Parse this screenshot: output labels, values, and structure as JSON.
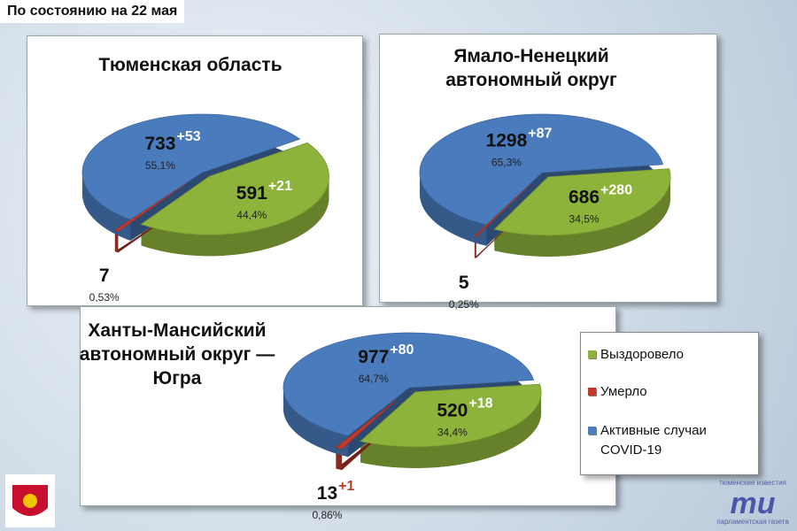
{
  "header": "По состоянию на 22 мая",
  "legend": {
    "labels": [
      "Выздоровело",
      "Умерло",
      "Активные случаи COVID-19"
    ],
    "colors": [
      "#8db33a",
      "#c0392b",
      "#4a7bbd"
    ]
  },
  "chart_data": [
    {
      "type": "pie",
      "title": [
        "Тюменская область"
      ],
      "values": [
        44.4,
        0.53,
        55.1
      ],
      "value_labels": [
        "44,4%",
        "0,53%",
        "55,1%"
      ],
      "counts": [
        591,
        7,
        733
      ],
      "changes": [
        21,
        null,
        53
      ],
      "change_labels": [
        "+21",
        null,
        "+53"
      ]
    },
    {
      "type": "pie",
      "title": [
        "Ямало-Ненецкий",
        "автономный округ"
      ],
      "values": [
        34.5,
        0.25,
        65.3
      ],
      "value_labels": [
        "34,5%",
        "0,25%",
        "65,3%"
      ],
      "counts": [
        686,
        5,
        1298
      ],
      "changes": [
        280,
        null,
        87
      ],
      "change_labels": [
        "+280",
        null,
        "+87"
      ]
    },
    {
      "type": "pie",
      "title": [
        "Ханты-Мансийский",
        "автономный округ —",
        "Югра"
      ],
      "values": [
        34.4,
        0.86,
        64.7
      ],
      "value_labels": [
        "34,4%",
        "0,86%",
        "64,7%"
      ],
      "counts": [
        520,
        13,
        977
      ],
      "changes": [
        18,
        1,
        80
      ],
      "change_labels": [
        "+18",
        "+1",
        "+80"
      ]
    }
  ],
  "watermark": {
    "top": "тюменские известия",
    "mark": "ти",
    "bottom": "парламентская газета"
  }
}
